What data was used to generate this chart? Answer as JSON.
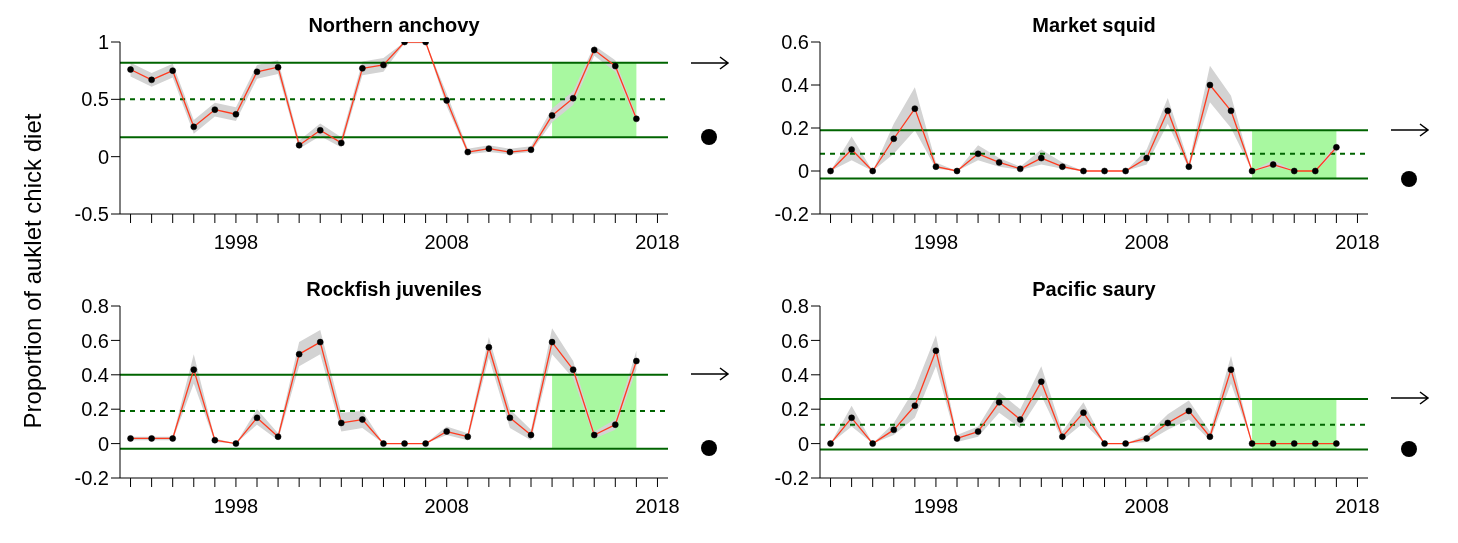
{
  "chart_data": [
    {
      "type": "line",
      "title": "Northern anchovy",
      "ylabel": "Proportion of auklet chick diet",
      "x": [
        1993,
        1994,
        1995,
        1996,
        1997,
        1998,
        1999,
        2000,
        2001,
        2002,
        2003,
        2004,
        2005,
        2006,
        2007,
        2008,
        2009,
        2010,
        2011,
        2012,
        2013,
        2014,
        2015,
        2016,
        2017
      ],
      "series": [
        {
          "color": "#ff3b1f",
          "values": [
            0.76,
            0.67,
            0.75,
            0.26,
            0.41,
            0.37,
            0.74,
            0.78,
            0.1,
            0.23,
            0.12,
            0.77,
            0.8,
            1.0,
            1.0,
            0.49,
            0.04,
            0.07,
            0.04,
            0.06,
            0.36,
            0.51,
            0.93,
            0.79,
            0.33
          ],
          "lower": [
            0.7,
            0.61,
            0.69,
            0.2,
            0.35,
            0.31,
            0.68,
            0.72,
            0.07,
            0.18,
            0.08,
            0.71,
            0.74,
            0.99,
            0.99,
            0.44,
            0.02,
            0.04,
            0.02,
            0.04,
            0.3,
            0.45,
            0.88,
            0.74,
            0.3
          ],
          "upper": [
            0.82,
            0.73,
            0.81,
            0.32,
            0.47,
            0.43,
            0.8,
            0.84,
            0.14,
            0.29,
            0.17,
            0.83,
            0.86,
            1.0,
            1.0,
            0.55,
            0.07,
            0.1,
            0.07,
            0.09,
            0.42,
            0.57,
            0.97,
            0.84,
            0.36
          ]
        }
      ],
      "xlim": [
        1992.5,
        2018.5
      ],
      "xticks": [
        {
          "value": 1993,
          "label": null
        },
        {
          "value": 1994,
          "label": null
        },
        {
          "value": 1995,
          "label": null
        },
        {
          "value": 1996,
          "label": null
        },
        {
          "value": 1997,
          "label": null
        },
        1998,
        {
          "value": 1999,
          "label": null
        },
        {
          "value": 2000,
          "label": null
        },
        {
          "value": 2001,
          "label": null
        },
        {
          "value": 2002,
          "label": null
        },
        {
          "value": 2003,
          "label": null
        },
        {
          "value": 2004,
          "label": null
        },
        {
          "value": 2005,
          "label": null
        },
        {
          "value": 2006,
          "label": null
        },
        {
          "value": 2007,
          "label": null
        },
        2008,
        {
          "value": 2009,
          "label": null
        },
        {
          "value": 2010,
          "label": null
        },
        {
          "value": 2011,
          "label": null
        },
        {
          "value": 2012,
          "label": null
        },
        {
          "value": 2013,
          "label": null
        },
        {
          "value": 2014,
          "label": null
        },
        {
          "value": 2015,
          "label": null
        },
        {
          "value": 2016,
          "label": null
        },
        {
          "value": 2017,
          "label": null
        },
        2018
      ],
      "ylim": [
        -0.5,
        1
      ],
      "yticks": [
        -0.5,
        0,
        0.5,
        1
      ],
      "ref_lines": [
        {
          "axis": "y",
          "value": 0.82,
          "color": "#006400",
          "line_style": "solid"
        },
        {
          "axis": "y",
          "value": 0.5,
          "color": "#006400",
          "line_style": "dashed"
        },
        {
          "axis": "y",
          "value": 0.17,
          "color": "#006400",
          "line_style": "solid"
        }
      ],
      "bands": [
        {
          "axis": "x",
          "from": 2013,
          "to": 2017,
          "color": "#a8f8a0"
        }
      ],
      "grid": false,
      "legend": false,
      "marker": "circle",
      "line_style": "solid"
    },
    {
      "type": "line",
      "title": "Market squid",
      "x": [
        1993,
        1994,
        1995,
        1996,
        1997,
        1998,
        1999,
        2000,
        2001,
        2002,
        2003,
        2004,
        2005,
        2006,
        2007,
        2008,
        2009,
        2010,
        2011,
        2012,
        2013,
        2014,
        2015,
        2016,
        2017
      ],
      "series": [
        {
          "color": "#ff3b1f",
          "values": [
            0,
            0.1,
            0,
            0.15,
            0.29,
            0.02,
            0,
            0.08,
            0.04,
            0.01,
            0.06,
            0.02,
            0,
            0,
            0,
            0.06,
            0.28,
            0.02,
            0.4,
            0.28,
            0,
            0.03,
            0,
            0,
            0.11
          ],
          "lower": [
            0,
            0.05,
            0,
            0.08,
            0.19,
            0.01,
            0,
            0.05,
            0.02,
            0.005,
            0.03,
            0.01,
            0,
            0,
            0,
            0.03,
            0.22,
            0.01,
            0.32,
            0.2,
            0,
            0.02,
            0,
            0,
            0.09
          ],
          "upper": [
            0,
            0.16,
            0,
            0.22,
            0.39,
            0.04,
            0,
            0.12,
            0.06,
            0.02,
            0.1,
            0.04,
            0,
            0,
            0,
            0.1,
            0.34,
            0.04,
            0.49,
            0.35,
            0,
            0.05,
            0,
            0,
            0.13
          ]
        }
      ],
      "xlim": [
        1992.5,
        2018.5
      ],
      "xticks": [
        {
          "value": 1993,
          "label": null
        },
        {
          "value": 1994,
          "label": null
        },
        {
          "value": 1995,
          "label": null
        },
        {
          "value": 1996,
          "label": null
        },
        {
          "value": 1997,
          "label": null
        },
        1998,
        {
          "value": 1999,
          "label": null
        },
        {
          "value": 2000,
          "label": null
        },
        {
          "value": 2001,
          "label": null
        },
        {
          "value": 2002,
          "label": null
        },
        {
          "value": 2003,
          "label": null
        },
        {
          "value": 2004,
          "label": null
        },
        {
          "value": 2005,
          "label": null
        },
        {
          "value": 2006,
          "label": null
        },
        {
          "value": 2007,
          "label": null
        },
        2008,
        {
          "value": 2009,
          "label": null
        },
        {
          "value": 2010,
          "label": null
        },
        {
          "value": 2011,
          "label": null
        },
        {
          "value": 2012,
          "label": null
        },
        {
          "value": 2013,
          "label": null
        },
        {
          "value": 2014,
          "label": null
        },
        {
          "value": 2015,
          "label": null
        },
        {
          "value": 2016,
          "label": null
        },
        {
          "value": 2017,
          "label": null
        },
        2018
      ],
      "ylim": [
        -0.2,
        0.6
      ],
      "yticks": [
        -0.2,
        0,
        0.2,
        0.4,
        0.6
      ],
      "ref_lines": [
        {
          "axis": "y",
          "value": 0.19,
          "color": "#006400",
          "line_style": "solid"
        },
        {
          "axis": "y",
          "value": 0.08,
          "color": "#006400",
          "line_style": "dashed"
        },
        {
          "axis": "y",
          "value": -0.035,
          "color": "#006400",
          "line_style": "solid"
        }
      ],
      "bands": [
        {
          "axis": "x",
          "from": 2013,
          "to": 2017,
          "color": "#a8f8a0"
        }
      ],
      "grid": false,
      "legend": false,
      "marker": "circle",
      "line_style": "solid"
    },
    {
      "type": "line",
      "title": "Rockfish juveniles",
      "x": [
        1993,
        1994,
        1995,
        1996,
        1997,
        1998,
        1999,
        2000,
        2001,
        2002,
        2003,
        2004,
        2005,
        2006,
        2007,
        2008,
        2009,
        2010,
        2011,
        2012,
        2013,
        2014,
        2015,
        2016,
        2017
      ],
      "series": [
        {
          "color": "#ff3b1f",
          "values": [
            0.03,
            0.03,
            0.03,
            0.43,
            0.02,
            0,
            0.15,
            0.04,
            0.52,
            0.59,
            0.12,
            0.14,
            0,
            0,
            0,
            0.07,
            0.04,
            0.56,
            0.15,
            0.05,
            0.59,
            0.43,
            0.05,
            0.11,
            0.48
          ],
          "lower": [
            0.02,
            0.02,
            0.02,
            0.35,
            0.01,
            0,
            0.11,
            0.02,
            0.45,
            0.52,
            0.07,
            0.09,
            0,
            0,
            0,
            0.05,
            0.02,
            0.5,
            0.09,
            0.02,
            0.52,
            0.38,
            0.03,
            0.08,
            0.43
          ],
          "upper": [
            0.04,
            0.04,
            0.04,
            0.52,
            0.03,
            0,
            0.2,
            0.06,
            0.59,
            0.66,
            0.18,
            0.19,
            0,
            0,
            0,
            0.1,
            0.06,
            0.62,
            0.2,
            0.08,
            0.67,
            0.48,
            0.07,
            0.14,
            0.54
          ]
        }
      ],
      "xlim": [
        1992.5,
        2018.5
      ],
      "xticks": [
        {
          "value": 1993,
          "label": null
        },
        {
          "value": 1994,
          "label": null
        },
        {
          "value": 1995,
          "label": null
        },
        {
          "value": 1996,
          "label": null
        },
        {
          "value": 1997,
          "label": null
        },
        1998,
        {
          "value": 1999,
          "label": null
        },
        {
          "value": 2000,
          "label": null
        },
        {
          "value": 2001,
          "label": null
        },
        {
          "value": 2002,
          "label": null
        },
        {
          "value": 2003,
          "label": null
        },
        {
          "value": 2004,
          "label": null
        },
        {
          "value": 2005,
          "label": null
        },
        {
          "value": 2006,
          "label": null
        },
        {
          "value": 2007,
          "label": null
        },
        2008,
        {
          "value": 2009,
          "label": null
        },
        {
          "value": 2010,
          "label": null
        },
        {
          "value": 2011,
          "label": null
        },
        {
          "value": 2012,
          "label": null
        },
        {
          "value": 2013,
          "label": null
        },
        {
          "value": 2014,
          "label": null
        },
        {
          "value": 2015,
          "label": null
        },
        {
          "value": 2016,
          "label": null
        },
        {
          "value": 2017,
          "label": null
        },
        2018
      ],
      "ylim": [
        -0.2,
        0.8
      ],
      "yticks": [
        -0.2,
        0,
        0.2,
        0.4,
        0.6,
        0.8
      ],
      "ref_lines": [
        {
          "axis": "y",
          "value": 0.4,
          "color": "#006400",
          "line_style": "solid"
        },
        {
          "axis": "y",
          "value": 0.19,
          "color": "#006400",
          "line_style": "dashed"
        },
        {
          "axis": "y",
          "value": -0.03,
          "color": "#006400",
          "line_style": "solid"
        }
      ],
      "bands": [
        {
          "axis": "x",
          "from": 2013,
          "to": 2017,
          "color": "#a8f8a0"
        }
      ],
      "grid": false,
      "legend": false,
      "marker": "circle",
      "line_style": "solid"
    },
    {
      "type": "line",
      "title": "Pacific saury",
      "x": [
        1993,
        1994,
        1995,
        1996,
        1997,
        1998,
        1999,
        2000,
        2001,
        2002,
        2003,
        2004,
        2005,
        2006,
        2007,
        2008,
        2009,
        2010,
        2011,
        2012,
        2013,
        2014,
        2015,
        2016,
        2017
      ],
      "series": [
        {
          "color": "#ff3b1f",
          "values": [
            0,
            0.15,
            0,
            0.08,
            0.22,
            0.54,
            0.03,
            0.07,
            0.24,
            0.14,
            0.36,
            0.04,
            0.18,
            0,
            0,
            0.03,
            0.12,
            0.19,
            0.04,
            0.43,
            0,
            0,
            0,
            0,
            0
          ],
          "lower": [
            0,
            0.1,
            0,
            0.05,
            0.15,
            0.45,
            0.01,
            0.04,
            0.18,
            0.09,
            0.28,
            0.02,
            0.12,
            0,
            0,
            0.01,
            0.08,
            0.14,
            0.02,
            0.35,
            0,
            0,
            0,
            0,
            0
          ],
          "upper": [
            0,
            0.22,
            0,
            0.12,
            0.32,
            0.63,
            0.05,
            0.1,
            0.3,
            0.2,
            0.45,
            0.07,
            0.24,
            0,
            0,
            0.05,
            0.17,
            0.25,
            0.07,
            0.51,
            0,
            0,
            0,
            0,
            0
          ]
        }
      ],
      "xlim": [
        1992.5,
        2018.5
      ],
      "xticks": [
        {
          "value": 1993,
          "label": null
        },
        {
          "value": 1994,
          "label": null
        },
        {
          "value": 1995,
          "label": null
        },
        {
          "value": 1996,
          "label": null
        },
        {
          "value": 1997,
          "label": null
        },
        1998,
        {
          "value": 1999,
          "label": null
        },
        {
          "value": 2000,
          "label": null
        },
        {
          "value": 2001,
          "label": null
        },
        {
          "value": 2002,
          "label": null
        },
        {
          "value": 2003,
          "label": null
        },
        {
          "value": 2004,
          "label": null
        },
        {
          "value": 2005,
          "label": null
        },
        {
          "value": 2006,
          "label": null
        },
        {
          "value": 2007,
          "label": null
        },
        2008,
        {
          "value": 2009,
          "label": null
        },
        {
          "value": 2010,
          "label": null
        },
        {
          "value": 2011,
          "label": null
        },
        {
          "value": 2012,
          "label": null
        },
        {
          "value": 2013,
          "label": null
        },
        {
          "value": 2014,
          "label": null
        },
        {
          "value": 2015,
          "label": null
        },
        {
          "value": 2016,
          "label": null
        },
        {
          "value": 2017,
          "label": null
        },
        2018
      ],
      "ylim": [
        -0.2,
        0.8
      ],
      "yticks": [
        -0.2,
        0,
        0.2,
        0.4,
        0.6,
        0.8
      ],
      "ref_lines": [
        {
          "axis": "y",
          "value": 0.26,
          "color": "#006400",
          "line_style": "solid"
        },
        {
          "axis": "y",
          "value": 0.11,
          "color": "#006400",
          "line_style": "dashed"
        },
        {
          "axis": "y",
          "value": -0.035,
          "color": "#006400",
          "line_style": "solid"
        }
      ],
      "bands": [
        {
          "axis": "x",
          "from": 2013,
          "to": 2017,
          "color": "#a8f8a0"
        }
      ],
      "grid": false,
      "legend": false,
      "marker": "circle",
      "line_style": "solid"
    }
  ]
}
